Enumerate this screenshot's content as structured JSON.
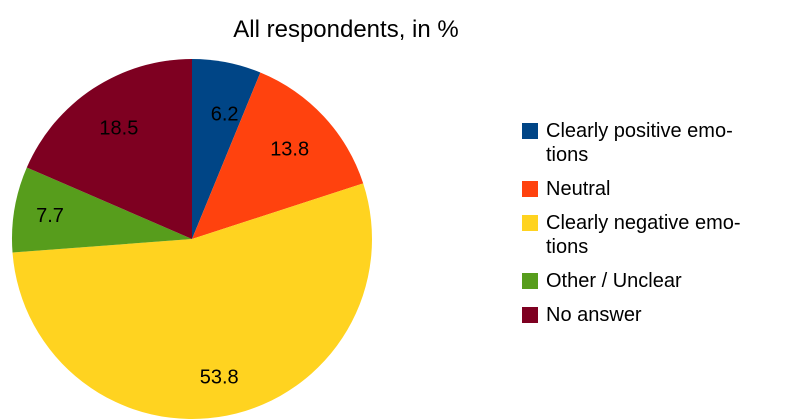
{
  "chart_data": {
    "type": "pie",
    "title": "All respondents, in %",
    "labels": [
      "Clearly positive emotions",
      "Neutral",
      "Clearly negative emotions",
      "Other / Unclear",
      "No answer"
    ],
    "values": [
      6.2,
      13.8,
      53.8,
      7.7,
      18.5
    ],
    "value_labels": [
      "6.2",
      "13.8",
      "53.8",
      "7.7",
      "18.5"
    ],
    "colors": [
      "#004586",
      "#ff420e",
      "#ffd320",
      "#579d1c",
      "#7e0021"
    ],
    "start_angle_deg": 0,
    "direction": "clockwise",
    "legend_position": "right"
  },
  "legend": {
    "items": [
      {
        "label": "Clearly positive emo-\ntions",
        "color": "#004586"
      },
      {
        "label": "Neutral",
        "color": "#ff420e"
      },
      {
        "label": "Clearly negative emo-\ntions",
        "color": "#ffd320"
      },
      {
        "label": "Other / Unclear",
        "color": "#579d1c"
      },
      {
        "label": "No answer",
        "color": "#7e0021"
      }
    ]
  }
}
